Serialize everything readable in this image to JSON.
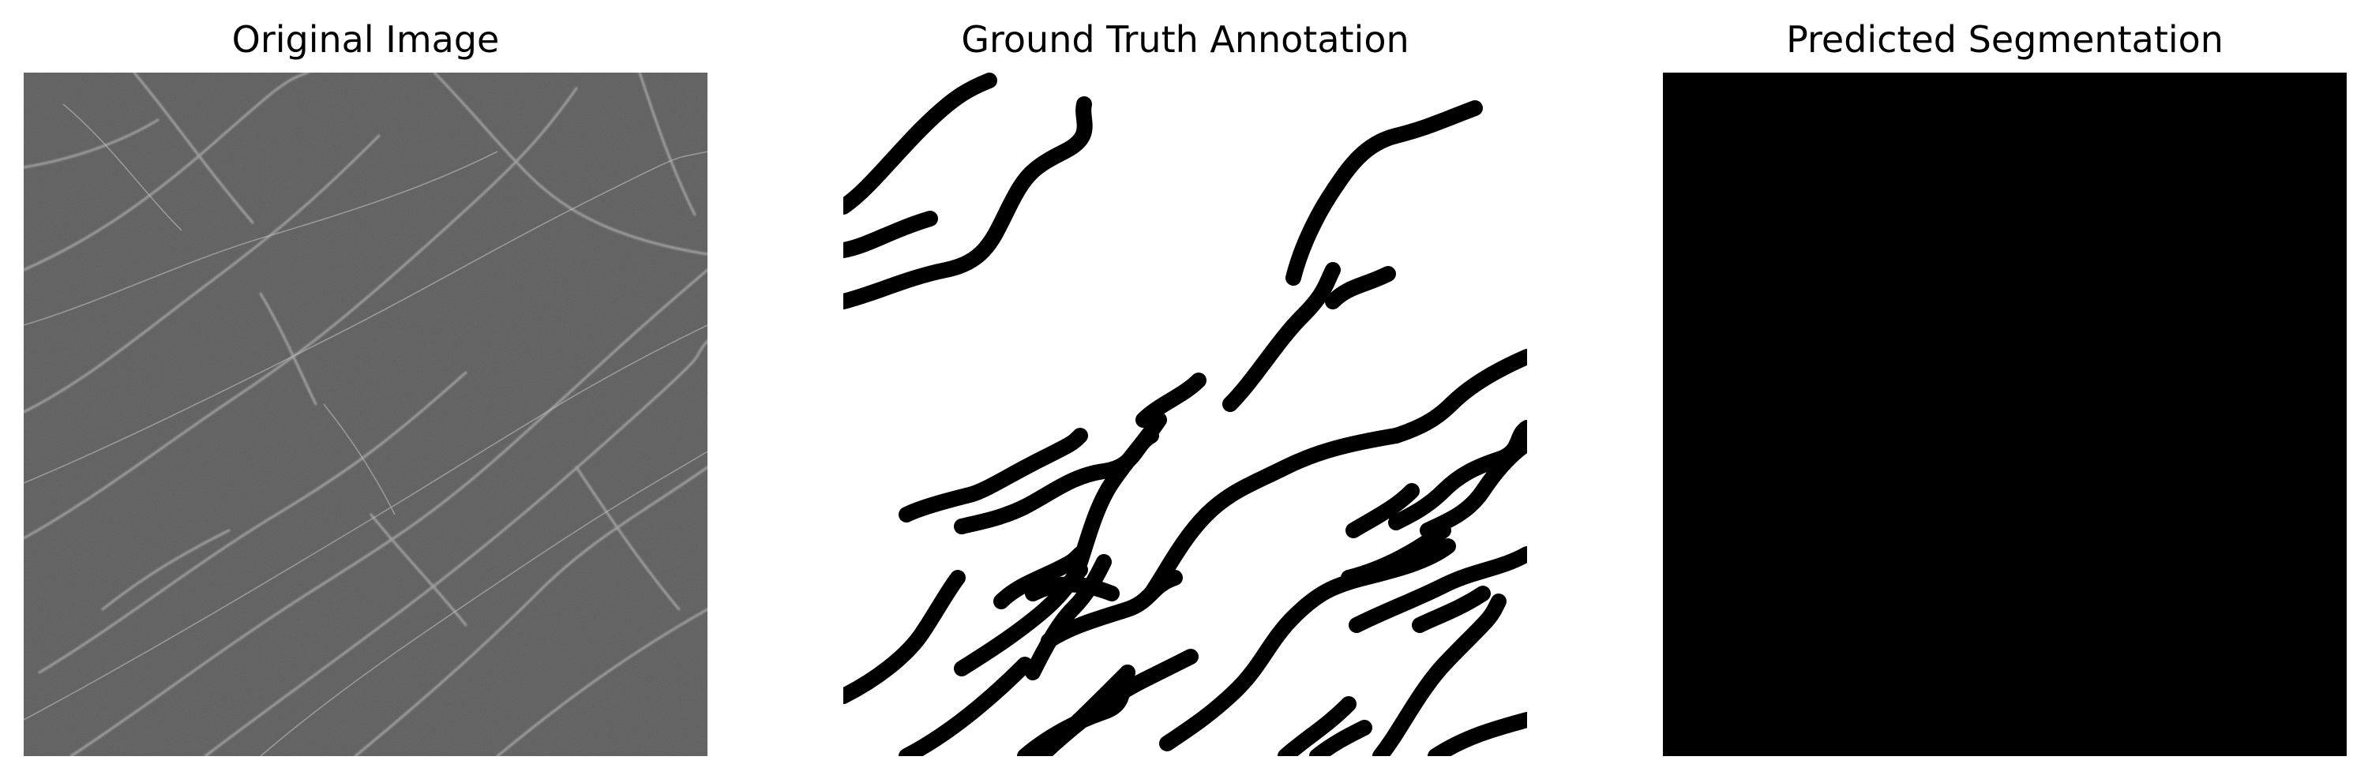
{
  "panels": [
    {
      "title": "Original Image",
      "content": "grayscale-texture-with-crack-lines"
    },
    {
      "title": "Ground Truth Annotation",
      "content": "black-crack-strokes-on-white"
    },
    {
      "title": "Predicted Segmentation",
      "content": "solid-black"
    }
  ],
  "colors": {
    "background": "#ffffff",
    "title_text": "#000000",
    "texture_base": "#6b6b6b",
    "texture_crack": "#b8b8b8",
    "annotation_bg": "#ffffff",
    "annotation_stroke": "#000000",
    "prediction_fill": "#000000"
  }
}
